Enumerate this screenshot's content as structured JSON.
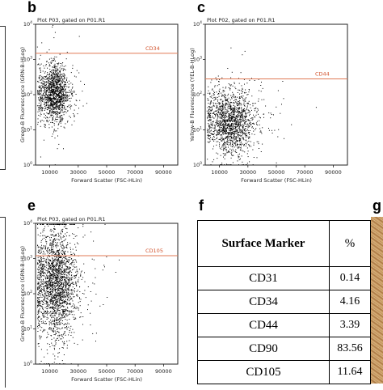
{
  "panel_letters": {
    "b": "b",
    "c": "c",
    "e": "e",
    "f": "f",
    "g": "g"
  },
  "chart_data": [
    {
      "type": "scatter",
      "panel": "b",
      "title": "Plot P03, gated on P01.R1",
      "xlabel": "Forward Scatter (FSC-HLin)",
      "ylabel": "Green-B Fluorescence (GRN-B-HLog)",
      "xlim": [
        0,
        100000
      ],
      "ylim": [
        1,
        10000
      ],
      "y_scale": "log",
      "x_ticks": [
        "10000",
        "30000",
        "50000",
        "70000",
        "90000"
      ],
      "y_ticks": [
        "10^0",
        "10^1",
        "10^2",
        "10^3",
        "10^4"
      ],
      "gate_label": "CD34",
      "gate_y": 1500,
      "cloud": {
        "x_center": 13000,
        "x_spread": 5000,
        "log_y_center": 2.05,
        "log_y_spread": 0.4,
        "n": 1400
      },
      "grid": false
    },
    {
      "type": "scatter",
      "panel": "c",
      "title": "Plot P02, gated on P01.R1",
      "xlabel": "Forward Scatter (FSC-HLin)",
      "ylabel": "Yellow-B Fluorescence (YEL-B-HLog)",
      "xlim": [
        0,
        100000
      ],
      "ylim": [
        1,
        10000
      ],
      "y_scale": "log",
      "x_ticks": [
        "10000",
        "30000",
        "50000",
        "70000",
        "90000"
      ],
      "y_ticks": [
        "10^0",
        "10^1",
        "10^2",
        "10^3",
        "10^4"
      ],
      "gate_label": "CD44",
      "gate_y": 280,
      "cloud": {
        "x_center": 18000,
        "x_spread": 8000,
        "log_y_center": 1.25,
        "log_y_spread": 0.45,
        "n": 1600
      },
      "grid": false
    },
    {
      "type": "scatter",
      "panel": "e",
      "title": "Plot P03, gated on P01.R1",
      "xlabel": "Forward Scatter (FSC-HLin)",
      "ylabel": "Green-B Fluorescence (GRN-B-HLog)",
      "xlim": [
        0,
        100000
      ],
      "ylim": [
        1,
        10000
      ],
      "y_scale": "log",
      "x_ticks": [
        "10000",
        "30000",
        "50000",
        "70000",
        "90000"
      ],
      "y_ticks": [
        "10^0",
        "10^1",
        "10^2",
        "10^3",
        "10^4"
      ],
      "gate_label": "CD105",
      "gate_y": 1200,
      "cloud": {
        "x_center": 14000,
        "x_spread": 7000,
        "log_y_center": 2.3,
        "log_y_spread": 0.75,
        "n": 2200
      },
      "grid": false
    },
    {
      "type": "table",
      "panel": "f",
      "columns": [
        "Surface Marker",
        "%"
      ],
      "rows": [
        [
          "CD31",
          "0.14"
        ],
        [
          "CD34",
          "4.16"
        ],
        [
          "CD44",
          "3.39"
        ],
        [
          "CD90",
          "83.56"
        ],
        [
          "CD105",
          "11.64"
        ]
      ]
    }
  ],
  "colors": {
    "gate_line": "#e07a55",
    "gate_text": "#d2542e",
    "dot": "#000000",
    "axis": "#222222"
  }
}
